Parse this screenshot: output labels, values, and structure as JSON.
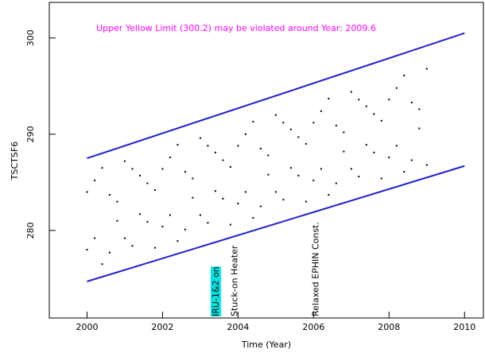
{
  "chart_data": {
    "type": "scatter",
    "annotation": "Upper Yellow  Limit (300.2) may be violated around Year: 2009.6",
    "xlabel": "Time (Year)",
    "ylabel": "TSCTSF6",
    "xlim": [
      1999,
      2010.5
    ],
    "ylim": [
      270.9,
      303.7
    ],
    "xticks": [
      2000,
      2002,
      2004,
      2006,
      2008,
      2010
    ],
    "yticks": [
      280,
      290,
      300
    ],
    "x": [
      2000.0,
      2000.2,
      2000.4,
      2000.6,
      2000.8,
      2001.0,
      2001.2,
      2001.4,
      2001.6,
      2001.8,
      2002.0,
      2002.2,
      2002.4,
      2002.6,
      2002.8,
      2003.0,
      2003.2,
      2003.4,
      2003.6,
      2003.8,
      2004.0,
      2004.2,
      2004.4,
      2004.6,
      2004.8,
      2005.0,
      2005.2,
      2005.4,
      2005.6,
      2005.8,
      2006.0,
      2006.2,
      2006.4,
      2006.6,
      2006.8,
      2007.0,
      2007.2,
      2007.4,
      2007.6,
      2007.8,
      2008.0,
      2008.2,
      2008.4,
      2008.6,
      2008.8,
      2009.0
    ],
    "series": [
      {
        "color": "#000000",
        "values": [
          284.0,
          279.2,
          286.5,
          277.7,
          283.0,
          279.2,
          286.4,
          281.7,
          284.9,
          278.2,
          286.4,
          281.6,
          288.9,
          280.1,
          285.4,
          281.6,
          288.8,
          284.1,
          287.3,
          280.6,
          288.8,
          284.0,
          291.3,
          282.5,
          287.8,
          284.0,
          291.2,
          286.5,
          289.7,
          283.0,
          291.2,
          286.4,
          293.7,
          284.9,
          290.2,
          286.4,
          293.6,
          288.9,
          292.1,
          285.4,
          293.6,
          288.8,
          296.1,
          287.3,
          292.6,
          286.8
        ]
      },
      {
        "color": "#000000",
        "values": [
          278.0,
          285.2,
          276.5,
          283.7,
          281.0,
          287.2,
          278.4,
          285.7,
          280.9,
          284.2,
          280.4,
          287.6,
          278.9,
          286.1,
          283.4,
          289.6,
          280.8,
          288.1,
          283.3,
          286.6,
          282.8,
          290.0,
          281.3,
          288.5,
          285.8,
          292.0,
          283.2,
          290.5,
          285.7,
          289.0,
          285.2,
          292.4,
          283.7,
          290.9,
          288.2,
          294.4,
          285.6,
          292.9,
          288.1,
          291.4,
          287.6,
          294.8,
          286.1,
          293.3,
          290.6,
          296.8
        ]
      }
    ],
    "lines": [
      {
        "color": "#1f1fd0",
        "x": [
          2000,
          2010
        ],
        "y": [
          287.5,
          300.5
        ]
      },
      {
        "color": "#1f1fd0",
        "x": [
          2000,
          2010
        ],
        "y": [
          274.7,
          286.7
        ]
      }
    ],
    "events": [
      {
        "label": "IRU-1&2 on",
        "x": 2003.4,
        "highlight": "#00e5e5"
      },
      {
        "label": "Stuck-on Heater",
        "x": 2003.9
      },
      {
        "label": "Relaxed EPHIN Const.",
        "x": 2006.05
      }
    ]
  }
}
